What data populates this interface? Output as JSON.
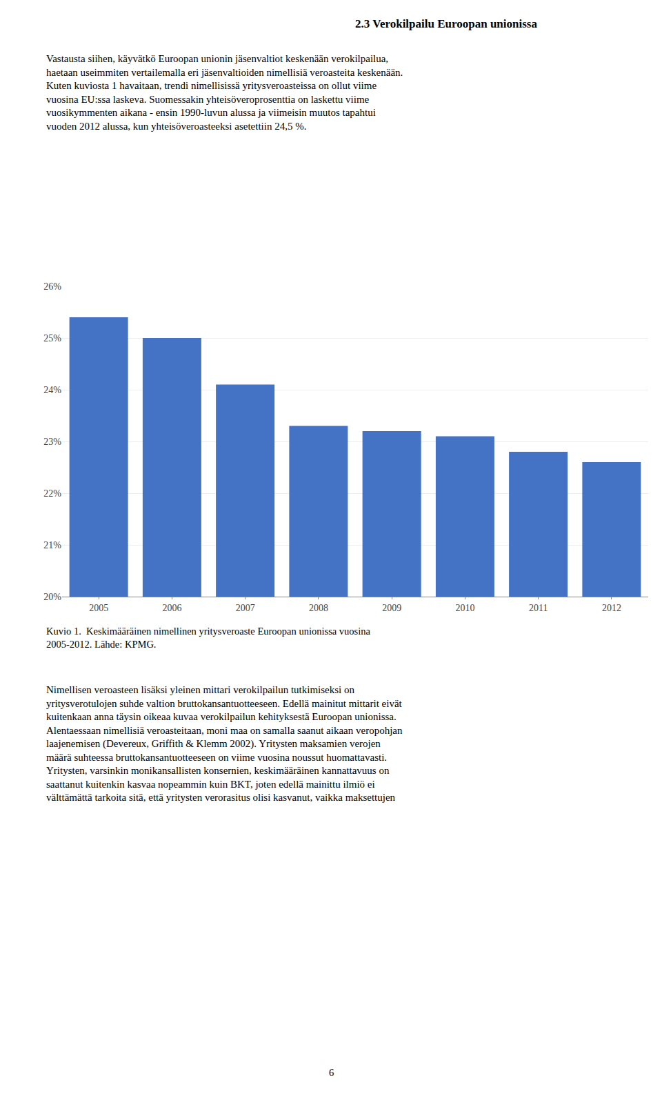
{
  "chart_data": {
    "type": "bar",
    "title": "2.3 Verokilpailu Euroopan unionissa",
    "categories": [
      "2005",
      "2006",
      "2007",
      "2008",
      "2009",
      "2010",
      "2011",
      "2012"
    ],
    "values": [
      25.4,
      25.0,
      24.1,
      23.3,
      23.2,
      23.1,
      22.8,
      22.6
    ],
    "color": "#4472C4",
    "ylim": [
      20.0,
      26.0
    ],
    "yticks": [
      {
        "value": 20,
        "label": "20%"
      },
      {
        "value": 21,
        "label": "21%"
      },
      {
        "value": 22,
        "label": "22%"
      },
      {
        "value": 23,
        "label": "23%"
      },
      {
        "value": 24,
        "label": "24%"
      },
      {
        "value": 25,
        "label": "25%"
      },
      {
        "value": 26,
        "label": "26%"
      }
    ],
    "grid": true,
    "annotations": [
      "Vastausta siihen, käyvätkö Euroopan unionin jäsenvaltiot keskenään verokilpailua,\nhaetaan useimmiten vertailemalla eri jäsenvaltioiden nimellisiä veroasteita keskenään.\nKuten kuviosta 1 havaitaan, trendi nimellisissä yritysveroasteissa on ollut viime\nvuosina EU:ssa laskeva. Suomessakin yhteisöveroprosenttia on laskettu viime\nvuosikymmenten aikana - ensin 1990-luvun alussa ja viimeisin muutos tapahtui\nvuoden 2012 alussa, kun yhteisöveroasteeksi asetettiin 24,5 %.",
      "Kuvio 1.  Keskimääräinen nimellinen yritysveroaste Euroopan unionissa vuosina\n2005-2012. Lähde: KPMG.",
      "Nimellisen veroasteen lisäksi yleinen mittari verokilpailun tutkimiseksi on\nyritys­verotulojen suhde valtion bruttokansantuotteeseen. Edellä mainitut mittarit eivät\nkuitenkaan anna täysin oikeaa kuvaa verokilpailun kehityksestä Euroopan unionissa.\nAlentaessaan nimellisiä veroasteitaan, moni maa on samalla saanut aikaan veropohjan\nlaajenemisen (Devereux, Griffith & Klemm 2002). Yritysten maksamien verojen\nmäärä suhteessa bruttokansantuotteeseen on viime vuosina noussut huomattavasti.\nYritysten, varsinkin monikansallisten konsernien, keskimääräinen kannattavuus on\nsaattanut kuitenkin kasvaa nopeammin kuin BKT, joten edellä mainittu ilmiö ei\nvälttämättä tarkoita sitä, että yritysten verorasitus olisi kasvanut, vaikka maksettujen",
      "6"
    ]
  }
}
